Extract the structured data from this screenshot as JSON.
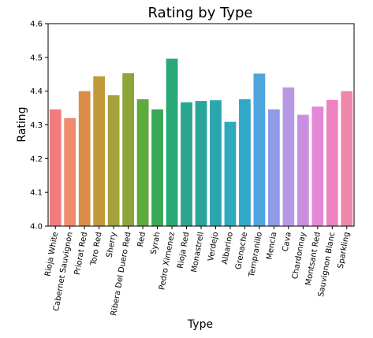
{
  "chart_data": {
    "type": "bar",
    "title": "Rating by Type",
    "xlabel": "Type",
    "ylabel": "Rating",
    "ylim": [
      4.0,
      4.6
    ],
    "yticks": [
      "4.0",
      "4.1",
      "4.2",
      "4.3",
      "4.4",
      "4.5",
      "4.6"
    ],
    "grid": false,
    "categories": [
      "Rioja White",
      "Cabernet Sauvignon",
      "Priorat Red",
      "Toro Red",
      "Sherry",
      "Ribera Del Duero Red",
      "Red",
      "Syrah",
      "Pedro Ximenez",
      "Rioja Red",
      "Monastrell",
      "Verdejo",
      "Albarino",
      "Grenache",
      "Tempranillo",
      "Mencia",
      "Cava",
      "Chardonnay",
      "Montsant Red",
      "Sauvignon Blanc",
      "Sparkling"
    ],
    "values": [
      4.346,
      4.32,
      4.4,
      4.444,
      4.388,
      4.453,
      4.376,
      4.346,
      4.496,
      4.367,
      4.371,
      4.373,
      4.309,
      4.376,
      4.452,
      4.346,
      4.411,
      4.33,
      4.354,
      4.374,
      4.4
    ],
    "colors": [
      "#f37b7d",
      "#f08b6e",
      "#db8d47",
      "#c29a3d",
      "#a5a23a",
      "#8ea53a",
      "#5eaa3b",
      "#3aa957",
      "#2aa876",
      "#2aa58f",
      "#29a59a",
      "#2aa7ad",
      "#2ea9bd",
      "#32a8c9",
      "#4ea4dd",
      "#8e9de6",
      "#b59ae3",
      "#cc8fe0",
      "#e487d4",
      "#ec84c2",
      "#f087ad"
    ]
  }
}
